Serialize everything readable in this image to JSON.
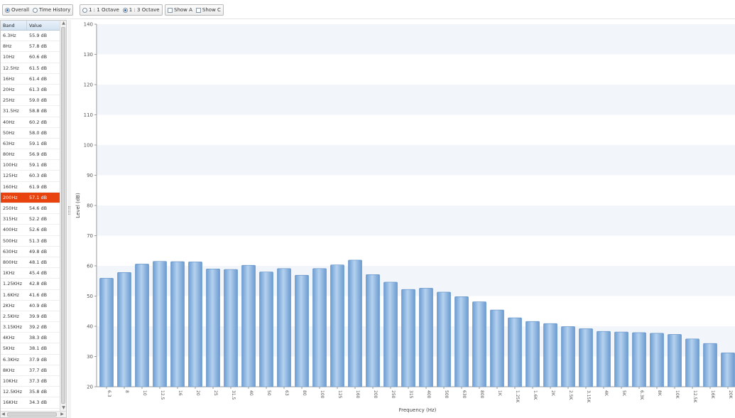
{
  "toolbar": {
    "overall": "Overall",
    "time_history": "Time History",
    "octave_1_1": "1 : 1 Octave",
    "octave_1_3": "1 : 3 Octave",
    "show_a": "Show A",
    "show_c": "Show C"
  },
  "table": {
    "headers": [
      "Band",
      "Value"
    ],
    "selected_index": 15,
    "rows": [
      {
        "band": "6.3Hz",
        "value": "55.9 dB"
      },
      {
        "band": "8Hz",
        "value": "57.8 dB"
      },
      {
        "band": "10Hz",
        "value": "60.6 dB"
      },
      {
        "band": "12.5Hz",
        "value": "61.5 dB"
      },
      {
        "band": "16Hz",
        "value": "61.4 dB"
      },
      {
        "band": "20Hz",
        "value": "61.3 dB"
      },
      {
        "band": "25Hz",
        "value": "59.0 dB"
      },
      {
        "band": "31.5Hz",
        "value": "58.8 dB"
      },
      {
        "band": "40Hz",
        "value": "60.2 dB"
      },
      {
        "band": "50Hz",
        "value": "58.0 dB"
      },
      {
        "band": "63Hz",
        "value": "59.1 dB"
      },
      {
        "band": "80Hz",
        "value": "56.9 dB"
      },
      {
        "band": "100Hz",
        "value": "59.1 dB"
      },
      {
        "band": "125Hz",
        "value": "60.3 dB"
      },
      {
        "band": "160Hz",
        "value": "61.9 dB"
      },
      {
        "band": "200Hz",
        "value": "57.1 dB"
      },
      {
        "band": "250Hz",
        "value": "54.6 dB"
      },
      {
        "band": "315Hz",
        "value": "52.2 dB"
      },
      {
        "band": "400Hz",
        "value": "52.6 dB"
      },
      {
        "band": "500Hz",
        "value": "51.3 dB"
      },
      {
        "band": "630Hz",
        "value": "49.8 dB"
      },
      {
        "band": "800Hz",
        "value": "48.1 dB"
      },
      {
        "band": "1KHz",
        "value": "45.4 dB"
      },
      {
        "band": "1.25KHz",
        "value": "42.8 dB"
      },
      {
        "band": "1.6KHz",
        "value": "41.6 dB"
      },
      {
        "band": "2KHz",
        "value": "40.9 dB"
      },
      {
        "band": "2.5KHz",
        "value": "39.9 dB"
      },
      {
        "band": "3.15KHz",
        "value": "39.2 dB"
      },
      {
        "band": "4KHz",
        "value": "38.3 dB"
      },
      {
        "band": "5KHz",
        "value": "38.1 dB"
      },
      {
        "band": "6.3KHz",
        "value": "37.9 dB"
      },
      {
        "band": "8KHz",
        "value": "37.7 dB"
      },
      {
        "band": "10KHz",
        "value": "37.3 dB"
      },
      {
        "band": "12.5KHz",
        "value": "35.8 dB"
      },
      {
        "band": "16KHz",
        "value": "34.3 dB"
      }
    ]
  },
  "colors": {
    "bar": "#8fb6e0",
    "bar_edge": "#5b8cc4",
    "selected_row": "#e8420f",
    "band_alt": "#f2f6fb"
  },
  "chart_data": {
    "type": "bar",
    "xlabel": "Frequency (Hz)",
    "ylabel": "Level (dB)",
    "ylim": [
      20,
      140
    ],
    "yticks": [
      20,
      30,
      40,
      50,
      60,
      70,
      80,
      90,
      100,
      110,
      120,
      130,
      140
    ],
    "categories": [
      "6.3",
      "8",
      "10",
      "12.5",
      "16",
      "20",
      "25",
      "31.5",
      "40",
      "50",
      "63",
      "80",
      "100",
      "125",
      "160",
      "200",
      "250",
      "315",
      "400",
      "500",
      "630",
      "800",
      "1K",
      "1.25K",
      "1.6K",
      "2K",
      "2.5K",
      "3.15K",
      "4K",
      "5K",
      "6.3K",
      "8K",
      "10K",
      "12.5K",
      "16K",
      "20K"
    ],
    "values": [
      55.9,
      57.8,
      60.6,
      61.5,
      61.4,
      61.3,
      59.0,
      58.8,
      60.2,
      58.0,
      59.1,
      56.9,
      59.1,
      60.3,
      61.9,
      57.1,
      54.6,
      52.2,
      52.6,
      51.3,
      49.8,
      48.1,
      45.4,
      42.8,
      41.6,
      40.9,
      39.9,
      39.2,
      38.3,
      38.1,
      37.9,
      37.7,
      37.3,
      35.8,
      34.3,
      31.2
    ],
    "grid": true,
    "legend": "none"
  }
}
